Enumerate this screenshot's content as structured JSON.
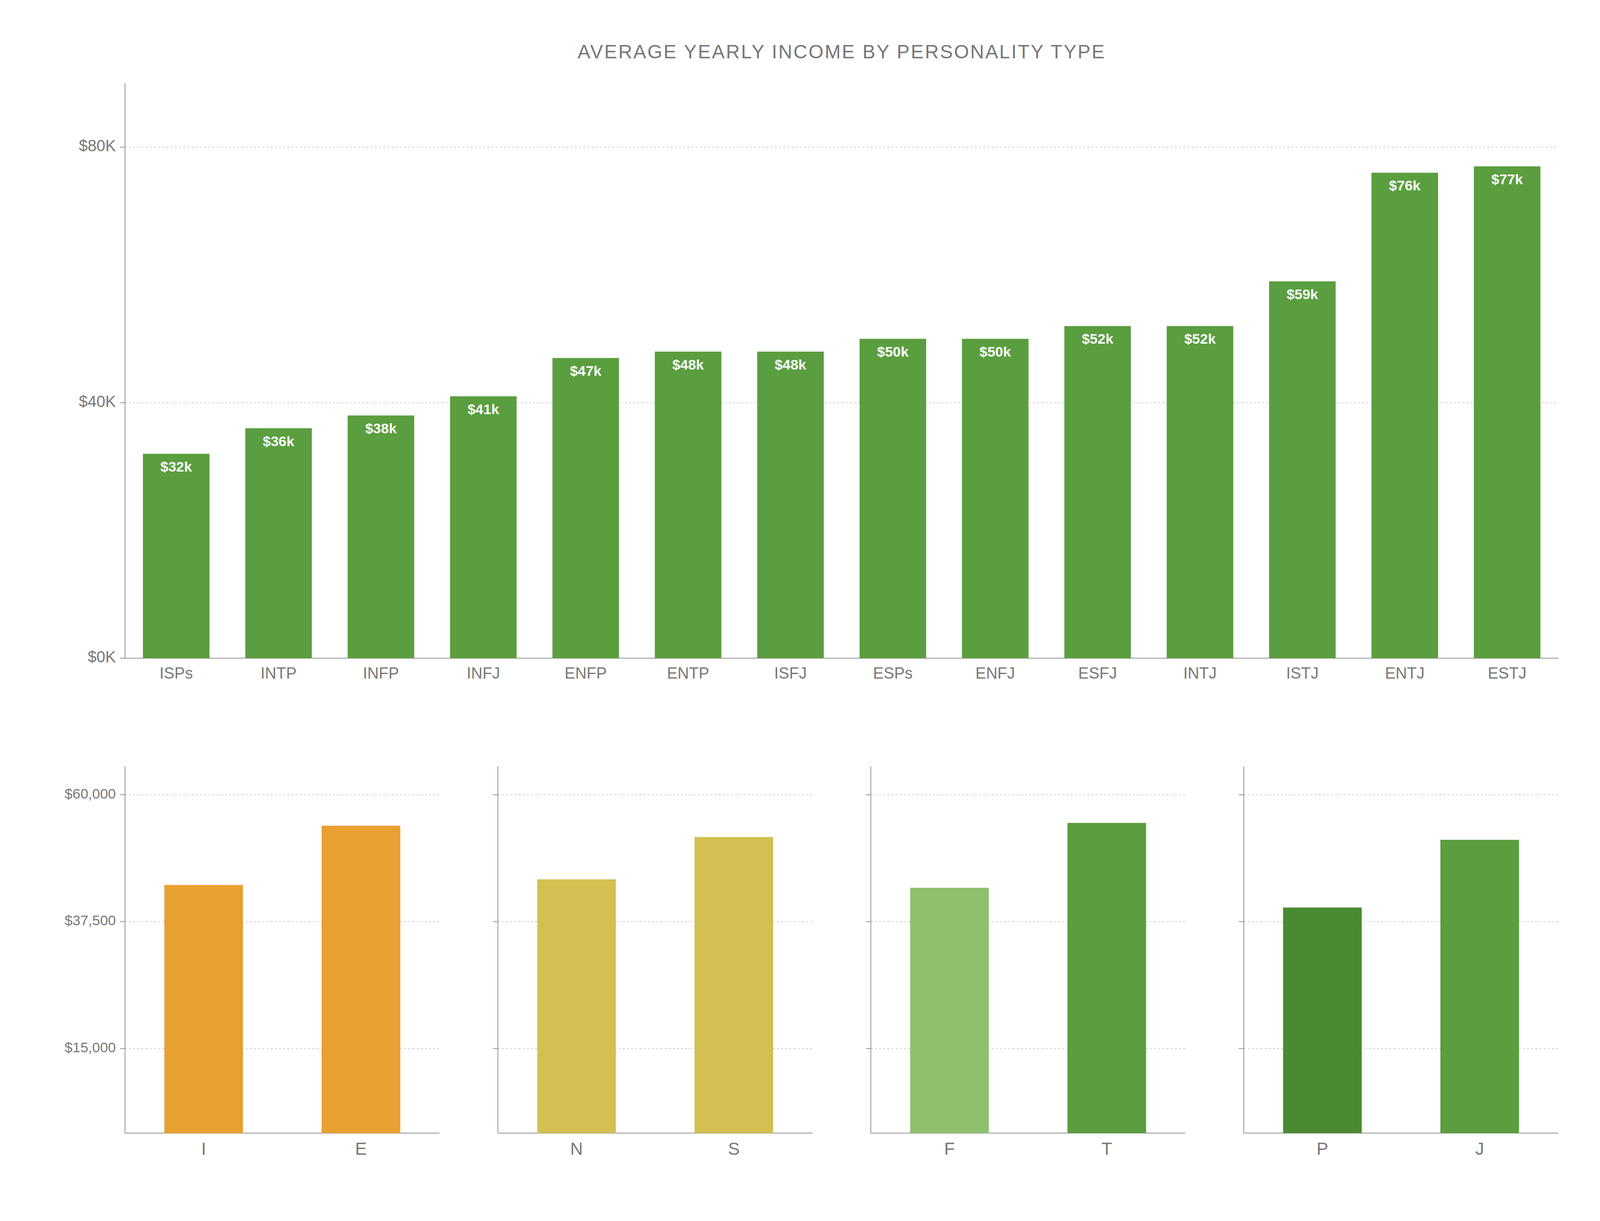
{
  "chart_data": [
    {
      "type": "bar",
      "title": "AVERAGE YEARLY INCOME BY PERSONALITY TYPE",
      "categories": [
        "ISPs",
        "INTP",
        "INFP",
        "INFJ",
        "ENFP",
        "ENTP",
        "ISFJ",
        "ESPs",
        "ENFJ",
        "ESFJ",
        "INTJ",
        "ISTJ",
        "ENTJ",
        "ESTJ"
      ],
      "values": [
        32000,
        36000,
        38000,
        41000,
        47000,
        48000,
        48000,
        50000,
        50000,
        52000,
        52000,
        59000,
        76000,
        77000
      ],
      "value_labels": [
        "$32k",
        "$36k",
        "$38k",
        "$41k",
        "$47k",
        "$48k",
        "$48k",
        "$50k",
        "$50k",
        "$52k",
        "$52k",
        "$59k",
        "$76k",
        "$77k"
      ],
      "data_labels": true,
      "color": "#5a9e3f",
      "ylim": [
        0,
        90000
      ],
      "yticks": [
        {
          "value": 0,
          "label": "$0K"
        },
        {
          "value": 40000,
          "label": "$40K"
        },
        {
          "value": 80000,
          "label": "$80K"
        }
      ],
      "grid": true
    },
    {
      "type": "bar",
      "categories": [
        "I",
        "E"
      ],
      "values": [
        44000,
        54500
      ],
      "colors": [
        "#e8a030",
        "#e8a030"
      ],
      "ylim": [
        0,
        65000
      ],
      "yticks": [
        {
          "value": 15000,
          "label": "$15,000"
        },
        {
          "value": 37500,
          "label": "$37,500"
        },
        {
          "value": 60000,
          "label": "$60,000"
        }
      ],
      "grid": true
    },
    {
      "type": "bar",
      "categories": [
        "N",
        "S"
      ],
      "values": [
        45000,
        52500
      ],
      "colors": [
        "#d4c050",
        "#d4c050"
      ],
      "ylim": [
        0,
        65000
      ],
      "yticks": [
        {
          "value": 15000,
          "label": "$15,000"
        },
        {
          "value": 37500,
          "label": "$37,500"
        },
        {
          "value": 60000,
          "label": "$60,000"
        }
      ],
      "grid": true,
      "tick_labels": "x"
    },
    {
      "type": "bar",
      "categories": [
        "F",
        "T"
      ],
      "values": [
        43500,
        55000
      ],
      "colors": [
        "#8ec06c",
        "#5a9e3f"
      ],
      "ylim": [
        0,
        65000
      ],
      "yticks": [
        {
          "value": 15000,
          "label": "$15,000"
        },
        {
          "value": 37500,
          "label": "$37,500"
        },
        {
          "value": 60000,
          "label": "$60,000"
        }
      ],
      "grid": true,
      "tick_labels": "x"
    },
    {
      "type": "bar",
      "categories": [
        "P",
        "J"
      ],
      "values": [
        40000,
        52000
      ],
      "colors": [
        "#4a8a30",
        "#5a9e3f"
      ],
      "ylim": [
        0,
        65000
      ],
      "yticks": [
        {
          "value": 15000,
          "label": "$15,000"
        },
        {
          "value": 37500,
          "label": "$37,500"
        },
        {
          "value": 60000,
          "label": "$60,000"
        }
      ],
      "grid": true,
      "tick_labels": "x"
    }
  ]
}
